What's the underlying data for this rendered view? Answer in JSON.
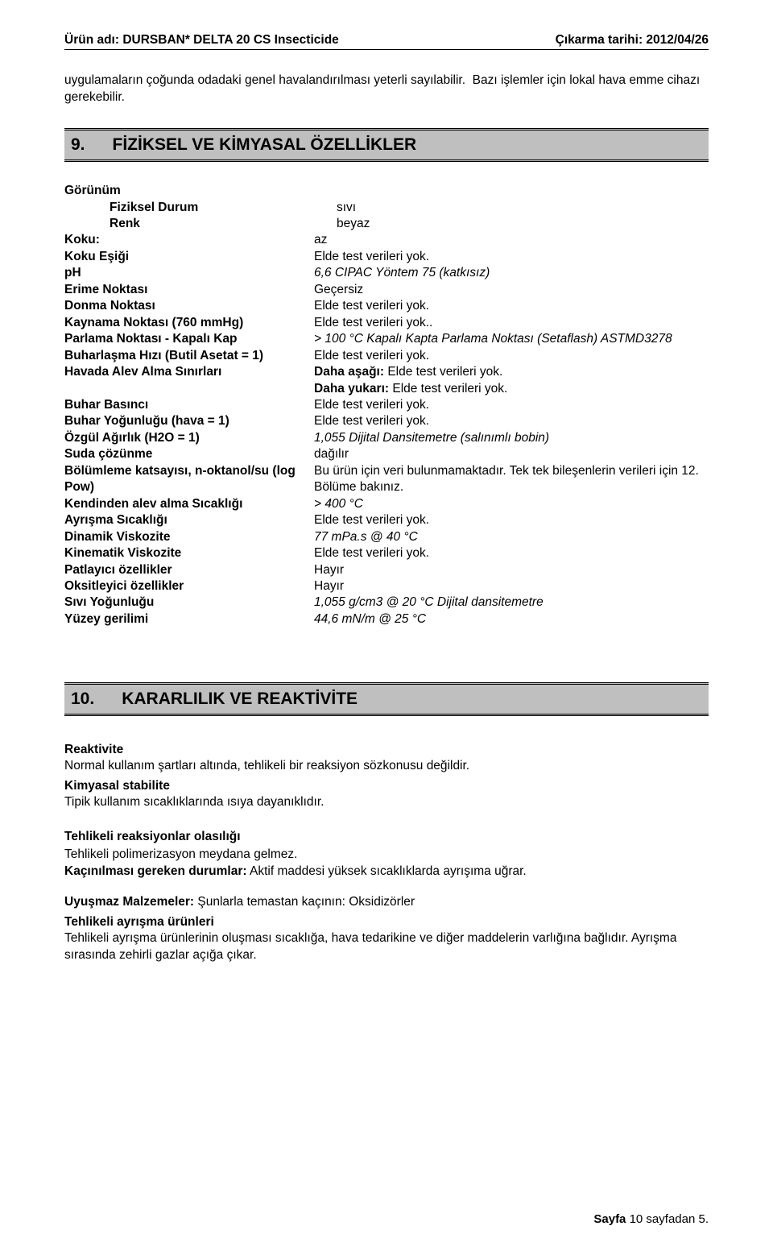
{
  "header": {
    "left_label": "Ürün adı:",
    "product": "DURSBAN* DELTA 20 CS Insecticide",
    "right_label": "Çıkarma tarihi:",
    "date": "2012/04/26"
  },
  "intro": "uygulamaların çoğunda odadaki genel havalandırılması yeterli sayılabilir.  Bazı işlemler için lokal hava emme cihazı gerekebilir.",
  "section9": {
    "num": "9.",
    "title": "FİZİKSEL VE KİMYASAL ÖZELLİKLER",
    "gorunum": "Görünüm",
    "rows": [
      {
        "k": "Fiziksel Durum",
        "v": "sıvı",
        "indent": true
      },
      {
        "k": "Renk",
        "v": "beyaz",
        "indent": true
      },
      {
        "k": "Koku:",
        "v": "az"
      },
      {
        "k": "Koku Eşiği",
        "v": "Elde test verileri yok."
      },
      {
        "k": "pH",
        "v": "6,6 CIPAC Yöntem 75 (katkısız)",
        "vi": true
      },
      {
        "k": "Erime Noktası",
        "v": "Geçersiz"
      },
      {
        "k": "Donma Noktası",
        "v": "Elde test verileri yok."
      },
      {
        "k": "Kaynama Noktası (760 mmHg)",
        "v": "Elde test verileri yok.."
      },
      {
        "k": "Parlama Noktası - Kapalı Kap",
        "v": "> 100 °C Kapalı Kapta Parlama Noktası (Setaflash) ASTMD3278",
        "vi": true
      },
      {
        "k": "Buharlaşma Hızı (Butil Asetat = 1)",
        "v": "Elde test verileri yok."
      },
      {
        "k": "Havada Alev Alma Sınırları",
        "v": "Daha aşağı: Elde test verileri yok.\nDaha yukarı: Elde test verileri yok.",
        "boldv": true
      },
      {
        "k": "Buhar Basıncı",
        "v": "Elde test verileri yok."
      },
      {
        "k": "Buhar Yoğunluğu (hava = 1)",
        "v": "Elde test verileri yok."
      },
      {
        "k": "Özgül Ağırlık (H2O = 1)",
        "v": "1,055 Dijital Dansitemetre (salınımlı bobin)",
        "vi": true
      },
      {
        "k": "Suda çözünme",
        "v": "dağılır"
      },
      {
        "k": "Bölümleme katsayısı, n-oktanol/su (log Pow)",
        "v": "Bu ürün için veri bulunmamaktadır. Tek tek bileşenlerin verileri için 12. Bölüme bakınız."
      },
      {
        "k": "Kendinden alev alma Sıcaklığı",
        "v": "> 400 °C",
        "vi": true
      },
      {
        "k": "Ayrışma Sıcaklığı",
        "v": "Elde test verileri yok."
      },
      {
        "k": "Dinamik Viskozite",
        "v": "77 mPa.s @ 40 °C",
        "vi": true
      },
      {
        "k": "Kinematik Viskozite",
        "v": "Elde test verileri yok."
      },
      {
        "k": "Patlayıcı özellikler",
        "v": "Hayır"
      },
      {
        "k": "Oksitleyici özellikler",
        "v": "Hayır"
      },
      {
        "k": "Sıvı Yoğunluğu",
        "v": "1,055 g/cm3 @ 20 °C Dijital dansitemetre",
        "vi": true
      },
      {
        "k": "Yüzey gerilimi",
        "v": "44,6 mN/m @ 25 °C",
        "vi": true
      }
    ]
  },
  "section10": {
    "num": "10.",
    "title": "KARARLILIK VE REAKTİVİTE",
    "reaktivite_h": "Reaktivite",
    "reaktivite_t": "Normal kullanım şartları altında, tehlikeli bir reaksiyon sözkonusu değildir.",
    "kimstab_h": "Kimyasal stabilite",
    "kimstab_t": "Tipik kullanım sıcaklıklarında ısıya dayanıklıdır.",
    "tehrx_h": "Tehlikeli reaksiyonlar olasılığı",
    "tehrx_t": "Tehlikeli polimerizasyon meydana gelmez.",
    "kacin_h": "Kaçınılması gereken durumlar:",
    "kacin_t": " Aktif maddesi yüksek sıcaklıklarda ayrışıma uğrar.",
    "uyumsuz_h": "Uyuşmaz Malzemeler:",
    "uyumsuz_t": " Şunlarla temastan kaçının:  Oksidizörler",
    "tehayr_h": "Tehlikeli ayrışma ürünleri",
    "tehayr_t": "Tehlikeli ayrışma ürünlerinin oluşması sıcaklığa, hava tedarikine ve diğer maddelerin varlığına bağlıdır. Ayrışma sırasında zehirli gazlar açığa çıkar."
  },
  "footer": {
    "a": "Sayfa",
    "b": "10 sayfadan 5."
  }
}
